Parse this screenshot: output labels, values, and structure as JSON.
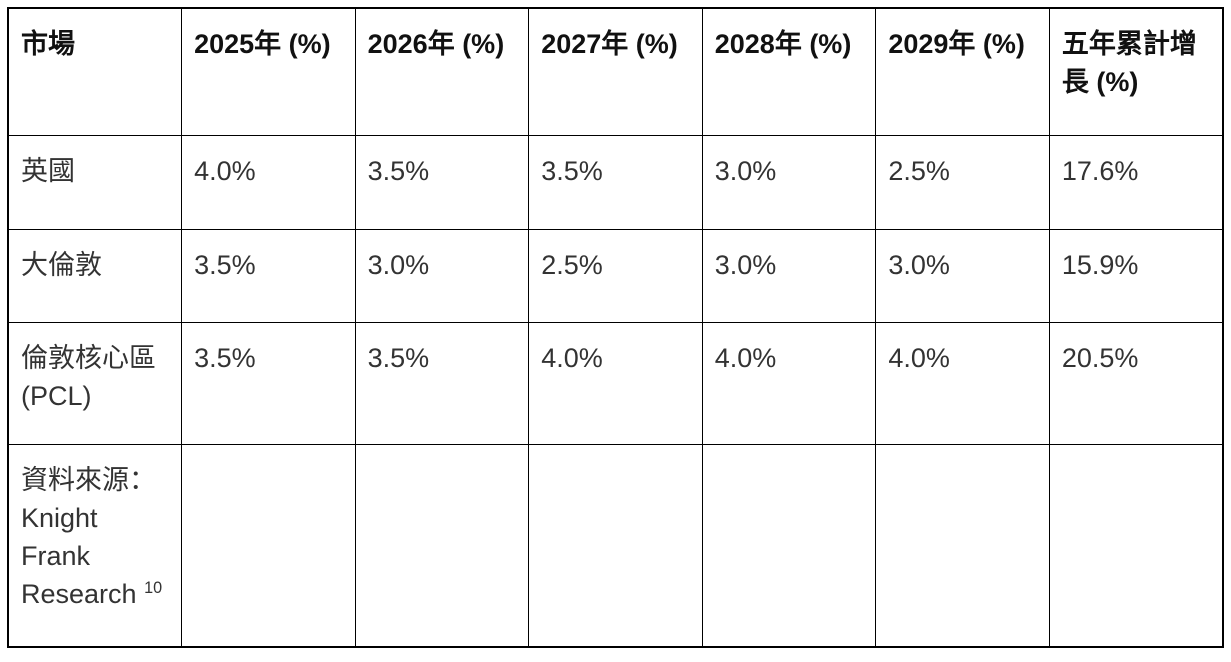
{
  "theme": {
    "border_color": "#000000",
    "body_text_color": "#333333",
    "header_text_color": "#111111",
    "page_background": "#ffffff"
  },
  "table": {
    "columns": [
      "市場",
      "2025年 (%)",
      "2026年 (%)",
      "2027年 (%)",
      "2028年 (%)",
      "2029年 (%)",
      "五年累計增長 (%)"
    ],
    "rows": [
      {
        "cells": [
          "英國",
          "4.0%",
          "3.5%",
          "3.5%",
          "3.0%",
          "2.5%",
          "17.6%"
        ]
      },
      {
        "cells": [
          "大倫敦",
          "3.5%",
          "3.0%",
          "2.5%",
          "3.0%",
          "3.0%",
          "15.9%"
        ]
      },
      {
        "cells": [
          "倫敦核心區 (PCL)",
          "3.5%",
          "3.5%",
          "4.0%",
          "4.0%",
          "4.0%",
          "20.5%"
        ]
      }
    ],
    "source": {
      "label": "資料來源：Knight Frank Research",
      "footnote_ref": "10"
    }
  }
}
